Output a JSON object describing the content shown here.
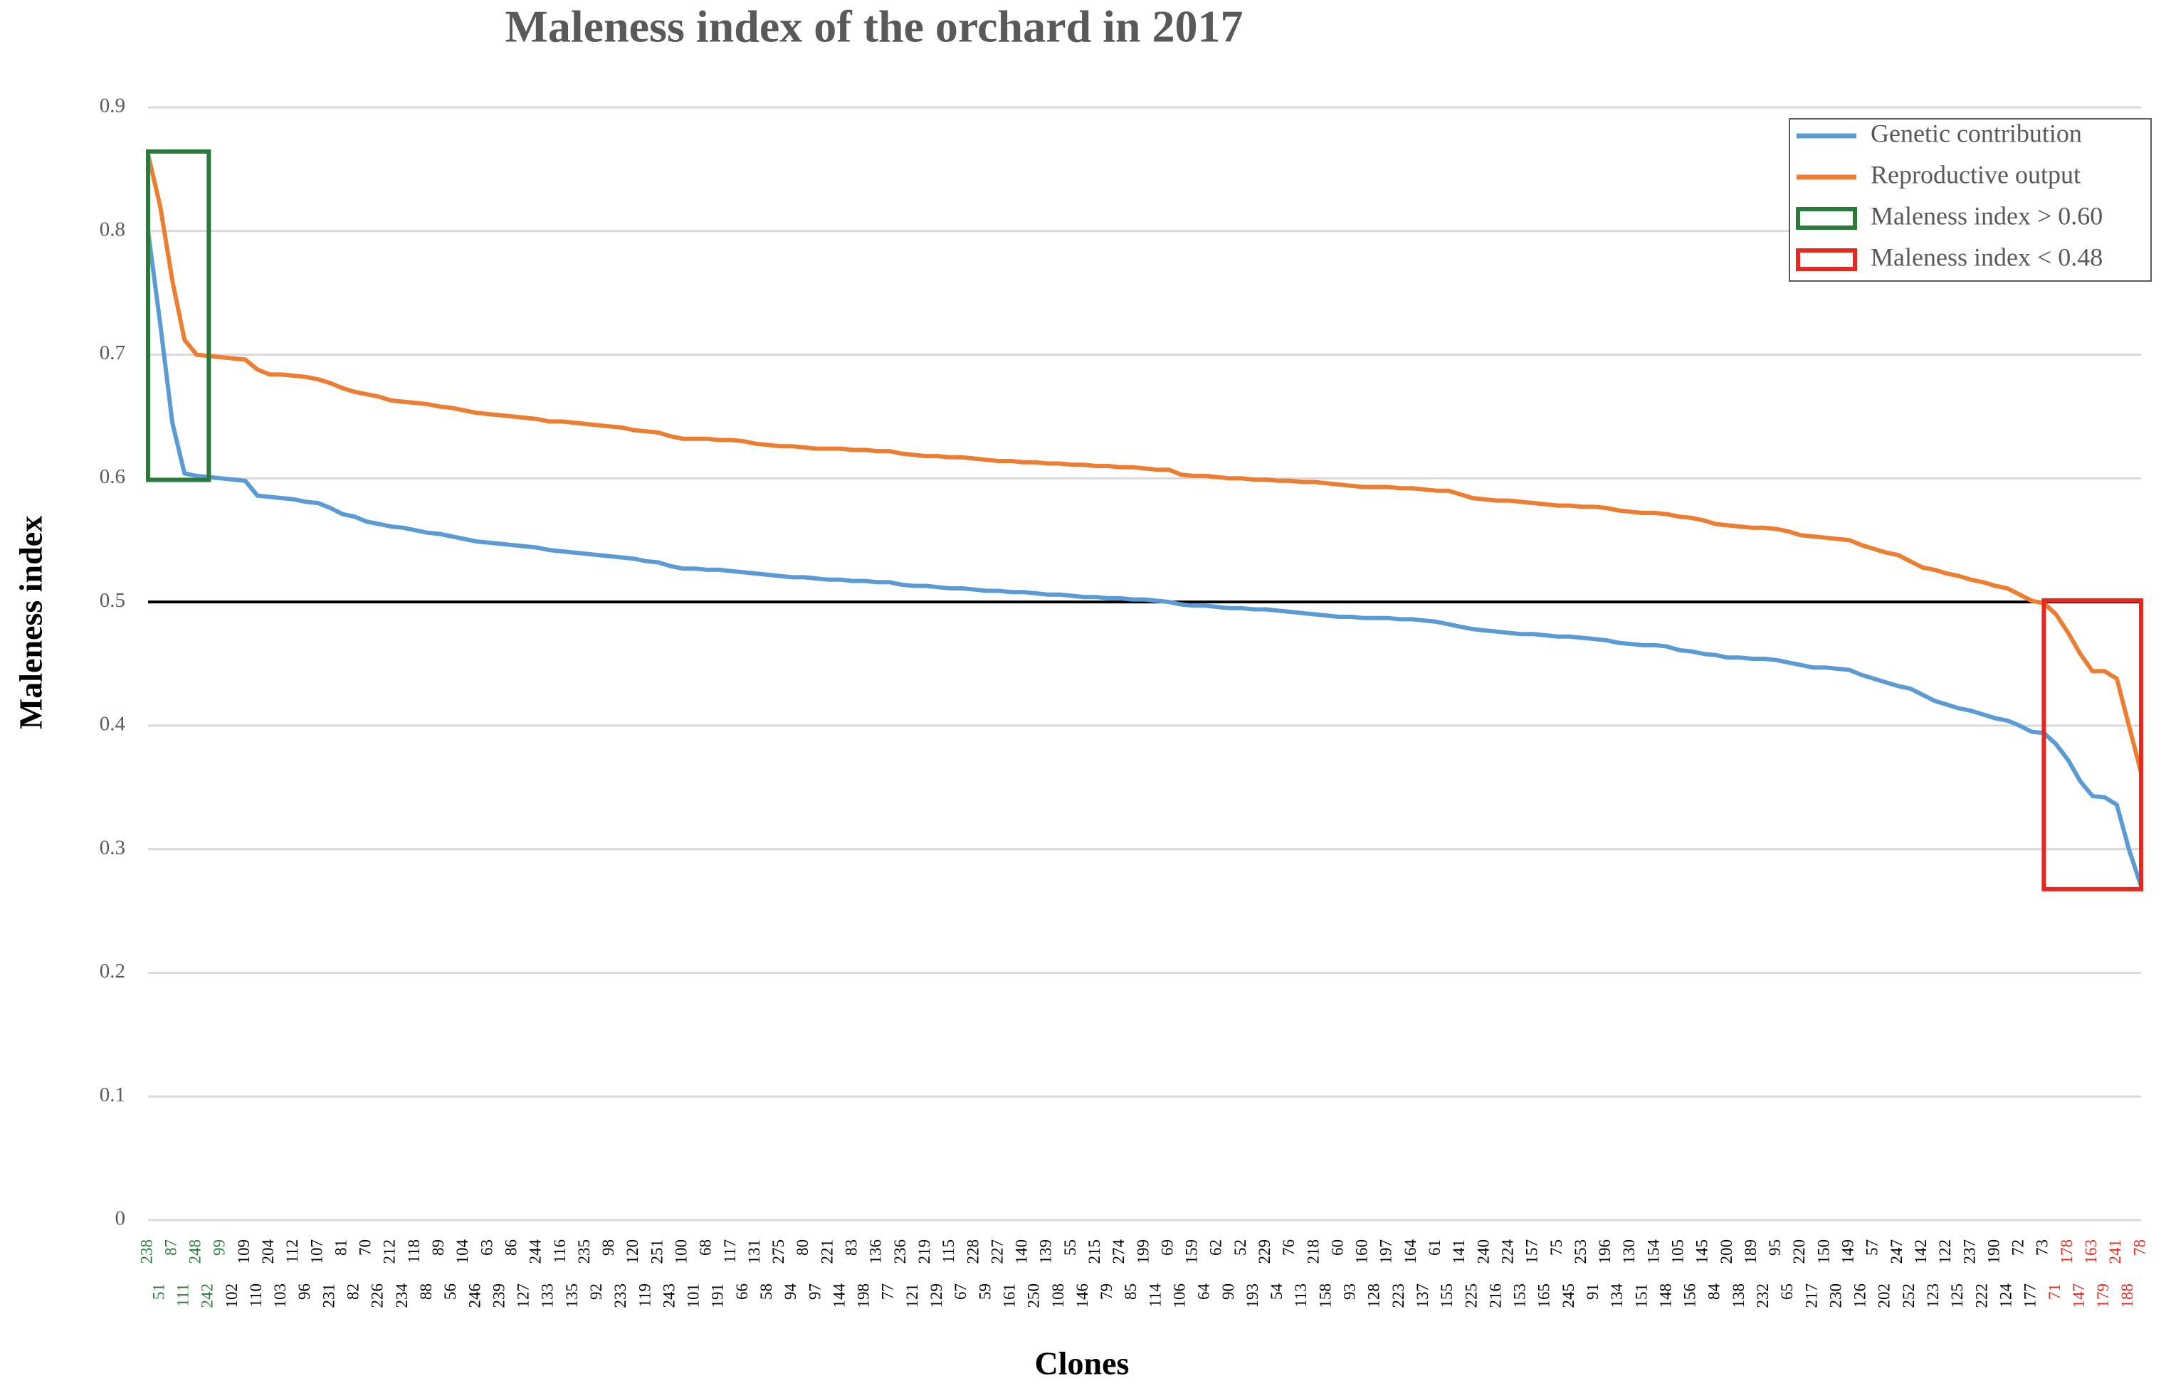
{
  "chart_data": {
    "type": "line",
    "title": "Maleness index of the orchard in 2017",
    "x_label": "Clones",
    "y_label": "Maleness index",
    "categories": [
      "238",
      "51",
      "87",
      "111",
      "248",
      "242",
      "99",
      "102",
      "109",
      "110",
      "204",
      "103",
      "112",
      "96",
      "107",
      "231",
      "81",
      "82",
      "70",
      "226",
      "212",
      "234",
      "118",
      "88",
      "89",
      "56",
      "104",
      "246",
      "63",
      "239",
      "86",
      "127",
      "244",
      "133",
      "116",
      "135",
      "235",
      "92",
      "98",
      "233",
      "120",
      "119",
      "251",
      "243",
      "100",
      "101",
      "68",
      "191",
      "117",
      "66",
      "131",
      "58",
      "275",
      "94",
      "80",
      "97",
      "221",
      "144",
      "83",
      "198",
      "136",
      "77",
      "236",
      "121",
      "219",
      "129",
      "115",
      "67",
      "228",
      "59",
      "227",
      "161",
      "140",
      "250",
      "139",
      "108",
      "55",
      "146",
      "215",
      "79",
      "274",
      "85",
      "199",
      "114",
      "69",
      "106",
      "159",
      "64",
      "62",
      "90",
      "52",
      "193",
      "229",
      "54",
      "76",
      "113",
      "218",
      "158",
      "60",
      "93",
      "160",
      "128",
      "197",
      "223",
      "164",
      "137",
      "61",
      "155",
      "141",
      "225",
      "240",
      "216",
      "224",
      "153",
      "157",
      "165",
      "75",
      "245",
      "253",
      "91",
      "196",
      "134",
      "130",
      "151",
      "154",
      "148",
      "105",
      "156",
      "145",
      "84",
      "200",
      "138",
      "189",
      "232",
      "95",
      "65",
      "220",
      "217",
      "150",
      "230",
      "149",
      "126",
      "57",
      "202",
      "247",
      "252",
      "142",
      "123",
      "122",
      "125",
      "237",
      "222",
      "190",
      "124",
      "72",
      "177",
      "73",
      "71",
      "178",
      "147",
      "163",
      "179",
      "241",
      "188",
      "78"
    ],
    "series": [
      {
        "name": "Genetic contribution",
        "color": "#5b9bd5",
        "values": [
          0.8,
          0.725,
          0.645,
          0.604,
          0.602,
          0.601,
          0.6,
          0.599,
          0.598,
          0.586,
          0.585,
          0.584,
          0.583,
          0.581,
          0.58,
          0.576,
          0.571,
          0.569,
          0.565,
          0.563,
          0.561,
          0.56,
          0.558,
          0.556,
          0.555,
          0.553,
          0.551,
          0.549,
          0.548,
          0.547,
          0.546,
          0.545,
          0.544,
          0.542,
          0.541,
          0.54,
          0.539,
          0.538,
          0.537,
          0.536,
          0.535,
          0.533,
          0.532,
          0.529,
          0.527,
          0.527,
          0.526,
          0.526,
          0.525,
          0.524,
          0.523,
          0.522,
          0.521,
          0.52,
          0.52,
          0.519,
          0.518,
          0.518,
          0.517,
          0.517,
          0.516,
          0.516,
          0.514,
          0.513,
          0.513,
          0.512,
          0.511,
          0.511,
          0.51,
          0.509,
          0.509,
          0.508,
          0.508,
          0.507,
          0.506,
          0.506,
          0.505,
          0.504,
          0.504,
          0.503,
          0.503,
          0.502,
          0.502,
          0.501,
          0.5,
          0.498,
          0.497,
          0.497,
          0.496,
          0.495,
          0.495,
          0.494,
          0.494,
          0.493,
          0.492,
          0.491,
          0.49,
          0.489,
          0.488,
          0.488,
          0.487,
          0.487,
          0.487,
          0.486,
          0.486,
          0.485,
          0.484,
          0.482,
          0.48,
          0.478,
          0.477,
          0.476,
          0.475,
          0.474,
          0.474,
          0.473,
          0.472,
          0.472,
          0.471,
          0.47,
          0.469,
          0.467,
          0.466,
          0.465,
          0.465,
          0.464,
          0.461,
          0.46,
          0.458,
          0.457,
          0.455,
          0.455,
          0.454,
          0.454,
          0.453,
          0.451,
          0.449,
          0.447,
          0.447,
          0.446,
          0.445,
          0.441,
          0.438,
          0.435,
          0.432,
          0.43,
          0.425,
          0.42,
          0.417,
          0.414,
          0.412,
          0.409,
          0.406,
          0.404,
          0.4,
          0.395,
          0.394,
          0.385,
          0.372,
          0.355,
          0.343,
          0.342,
          0.336,
          0.3,
          0.27
        ]
      },
      {
        "name": "Reproductive output",
        "color": "#ed7d31",
        "values": [
          0.862,
          0.82,
          0.76,
          0.712,
          0.7,
          0.699,
          0.698,
          0.697,
          0.696,
          0.688,
          0.684,
          0.684,
          0.683,
          0.682,
          0.68,
          0.677,
          0.673,
          0.67,
          0.668,
          0.666,
          0.663,
          0.662,
          0.661,
          0.66,
          0.658,
          0.657,
          0.655,
          0.653,
          0.652,
          0.651,
          0.65,
          0.649,
          0.648,
          0.646,
          0.646,
          0.645,
          0.644,
          0.643,
          0.642,
          0.641,
          0.639,
          0.638,
          0.637,
          0.634,
          0.632,
          0.632,
          0.632,
          0.631,
          0.631,
          0.63,
          0.628,
          0.627,
          0.626,
          0.626,
          0.625,
          0.624,
          0.624,
          0.624,
          0.623,
          0.623,
          0.622,
          0.622,
          0.62,
          0.619,
          0.618,
          0.618,
          0.617,
          0.617,
          0.616,
          0.615,
          0.614,
          0.614,
          0.613,
          0.613,
          0.612,
          0.612,
          0.611,
          0.611,
          0.61,
          0.61,
          0.609,
          0.609,
          0.608,
          0.607,
          0.607,
          0.603,
          0.602,
          0.602,
          0.601,
          0.6,
          0.6,
          0.599,
          0.599,
          0.598,
          0.598,
          0.597,
          0.597,
          0.596,
          0.595,
          0.594,
          0.593,
          0.593,
          0.593,
          0.592,
          0.592,
          0.591,
          0.59,
          0.59,
          0.587,
          0.584,
          0.583,
          0.582,
          0.582,
          0.581,
          0.58,
          0.579,
          0.578,
          0.578,
          0.577,
          0.577,
          0.576,
          0.574,
          0.573,
          0.572,
          0.572,
          0.571,
          0.569,
          0.568,
          0.566,
          0.563,
          0.562,
          0.561,
          0.56,
          0.56,
          0.559,
          0.557,
          0.554,
          0.553,
          0.552,
          0.551,
          0.55,
          0.546,
          0.543,
          0.54,
          0.538,
          0.533,
          0.528,
          0.526,
          0.523,
          0.521,
          0.518,
          0.516,
          0.513,
          0.511,
          0.506,
          0.501,
          0.499,
          0.49,
          0.475,
          0.458,
          0.444,
          0.444,
          0.438,
          0.4,
          0.362
        ]
      }
    ],
    "highlights": [
      {
        "name": "Maleness index > 0.60",
        "color": "#2a7a3b"
      },
      {
        "name": "Maleness index < 0.48",
        "color": "#e8281e"
      }
    ],
    "reference_line": 0.5,
    "ylim": [
      0,
      0.9
    ],
    "yticks": [
      0,
      0.1,
      0.2,
      0.3,
      0.4,
      0.5,
      0.6,
      0.7,
      0.8,
      0.9
    ],
    "grid": true,
    "legend": "upper right"
  }
}
